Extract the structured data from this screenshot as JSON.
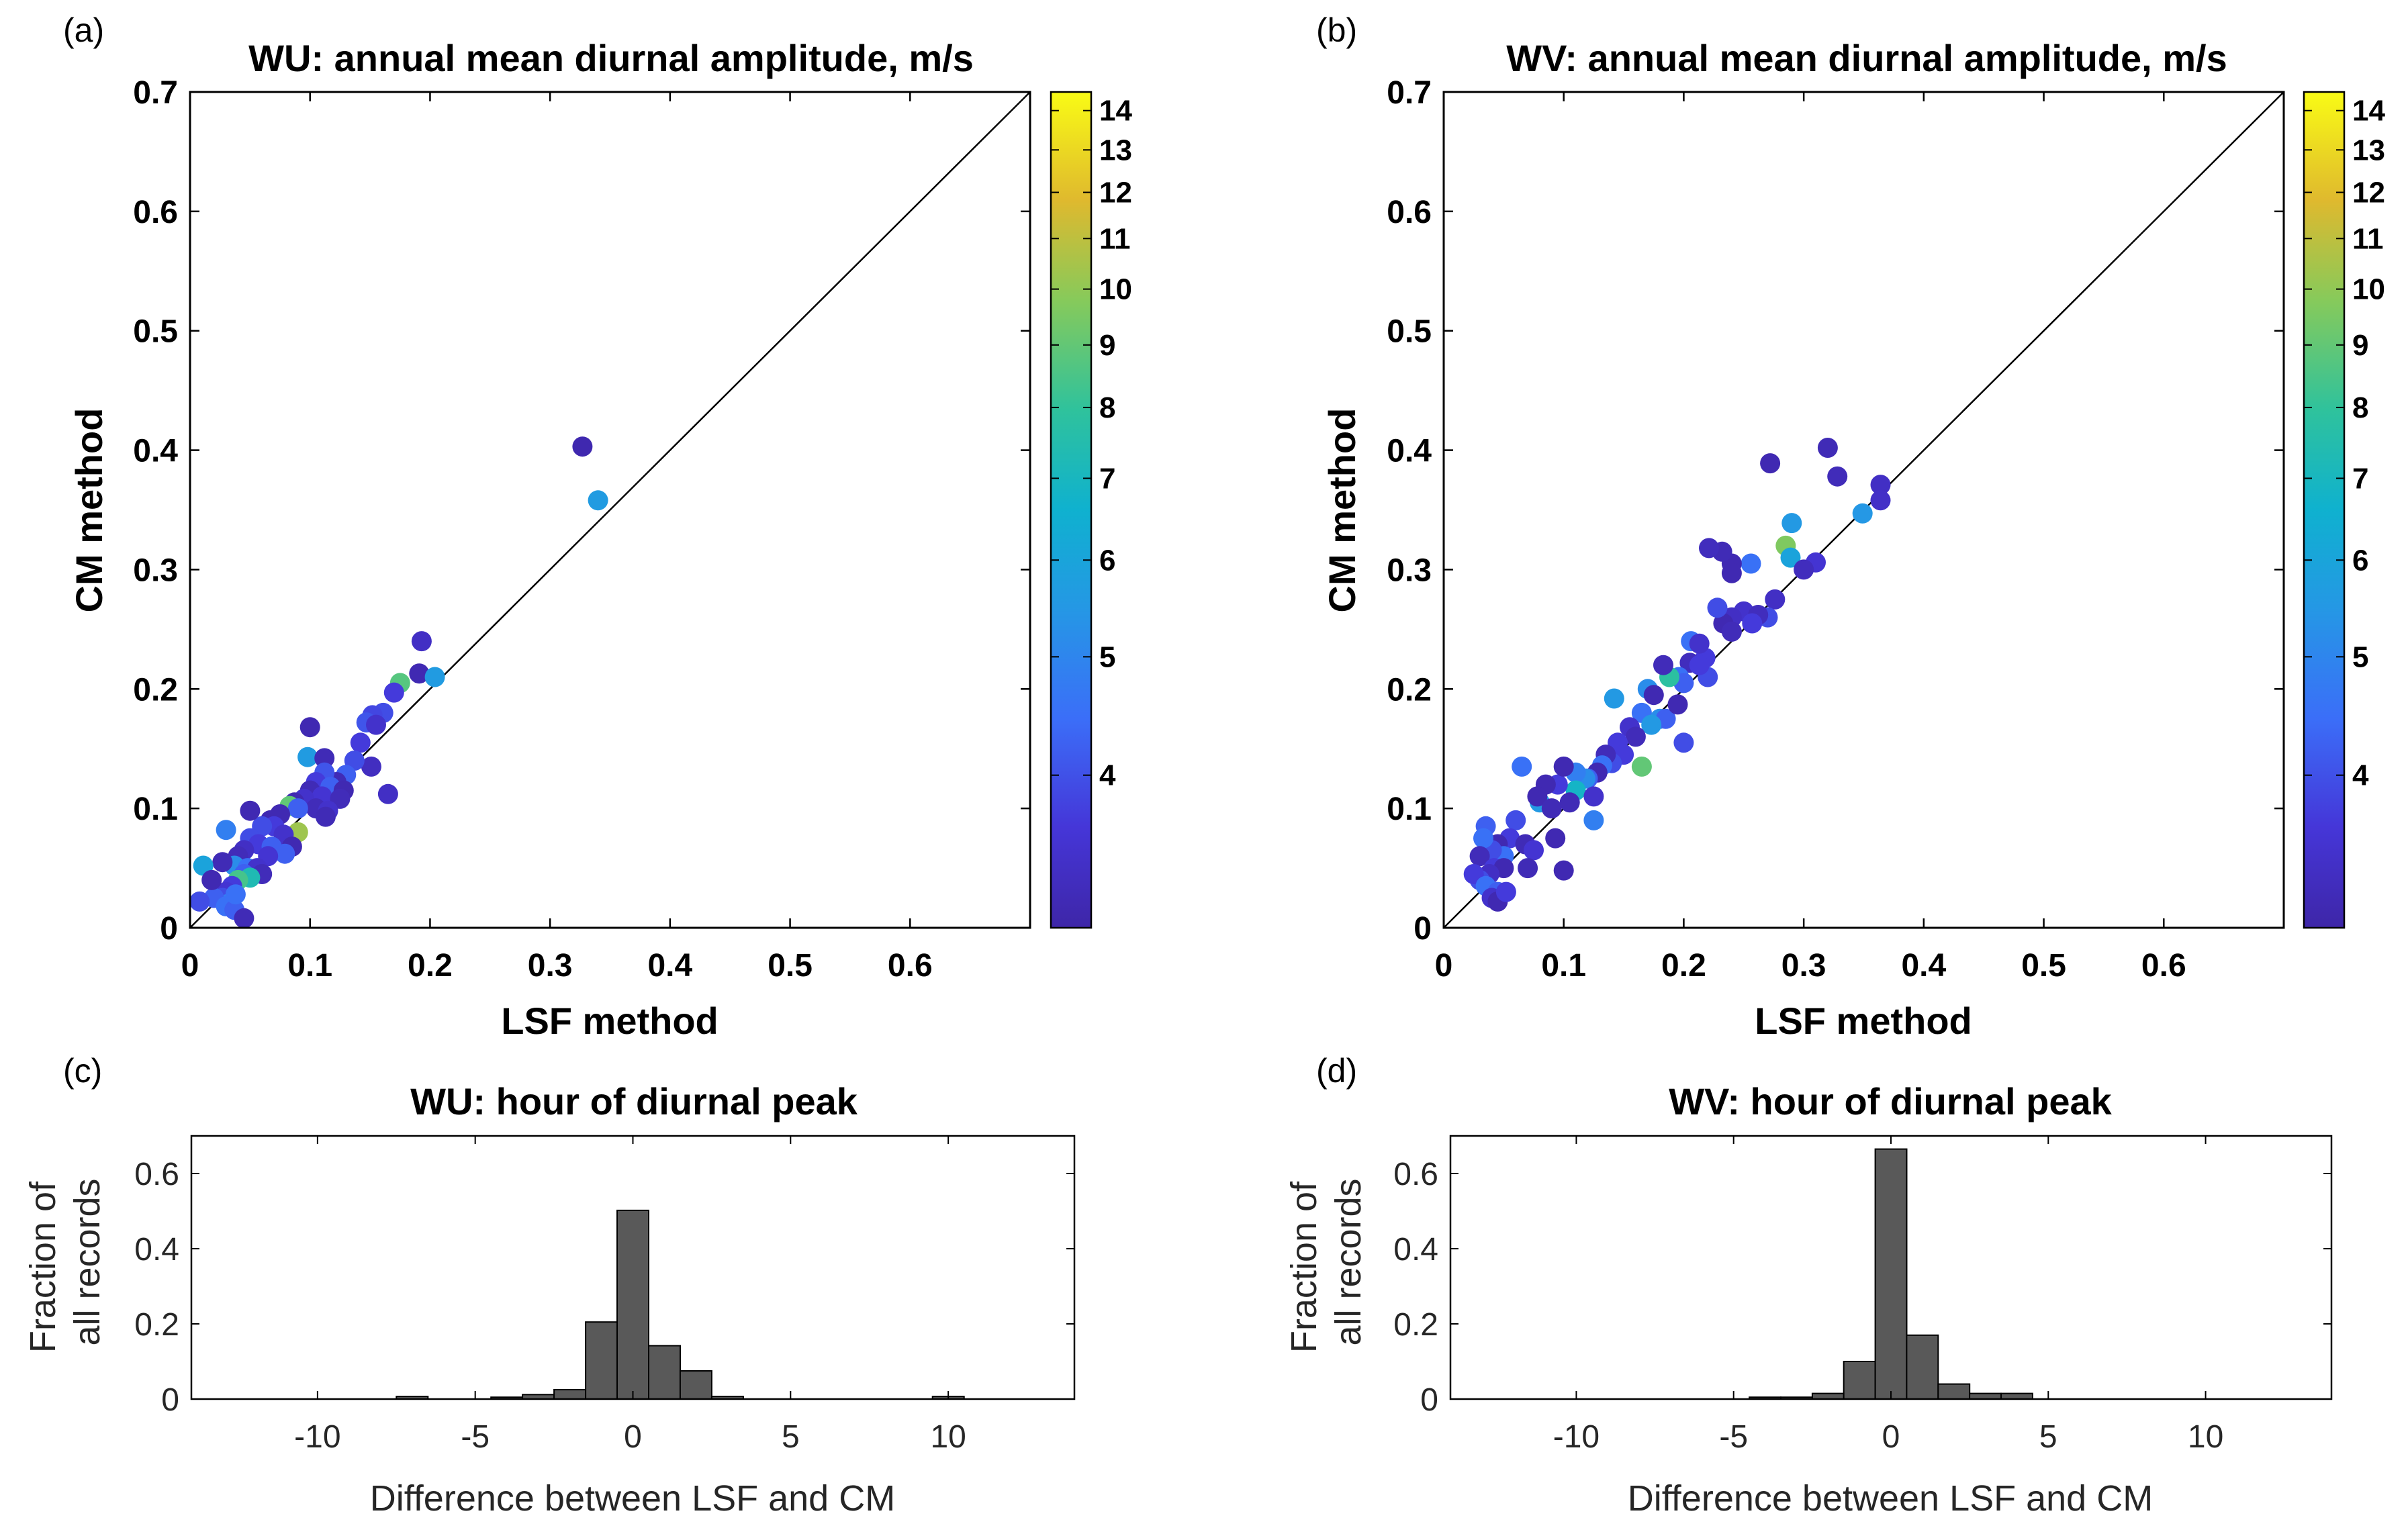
{
  "chart_data": [
    {
      "id": "a",
      "type": "scatter",
      "panel_label": "(a)",
      "title": "WU: annual mean diurnal amplitude, m/s",
      "xlabel": "LSF method",
      "ylabel": "CM method",
      "xlim": [
        0,
        0.7
      ],
      "ylim": [
        0,
        0.7
      ],
      "xticks": [
        "0",
        "0.1",
        "0.2",
        "0.3",
        "0.4",
        "0.5",
        "0.6"
      ],
      "yticks": [
        "0",
        "0.1",
        "0.2",
        "0.3",
        "0.4",
        "0.5",
        "0.6",
        "0.7"
      ],
      "reference_line": "y = x",
      "colorbar": {
        "range": [
          3,
          14.5
        ],
        "ticks": [
          "4",
          "5",
          "6",
          "7",
          "8",
          "9",
          "10",
          "11",
          "12",
          "13",
          "14"
        ],
        "colormap": "parula"
      },
      "points": [
        [
          0.327,
          0.403,
          3.2
        ],
        [
          0.34,
          0.358,
          7.6
        ],
        [
          0.193,
          0.24,
          3.8
        ],
        [
          0.191,
          0.213,
          3.3
        ],
        [
          0.204,
          0.21,
          7.6
        ],
        [
          0.175,
          0.205,
          10.8
        ],
        [
          0.17,
          0.197,
          4.5
        ],
        [
          0.161,
          0.18,
          5.0
        ],
        [
          0.152,
          0.178,
          4.8
        ],
        [
          0.147,
          0.172,
          5.2
        ],
        [
          0.155,
          0.17,
          4.0
        ],
        [
          0.142,
          0.155,
          4.5
        ],
        [
          0.151,
          0.135,
          3.7
        ],
        [
          0.165,
          0.112,
          3.8
        ],
        [
          0.1,
          0.168,
          3.3
        ],
        [
          0.098,
          0.143,
          7.6
        ],
        [
          0.112,
          0.142,
          3.4
        ],
        [
          0.137,
          0.14,
          5.0
        ],
        [
          0.13,
          0.128,
          5.5
        ],
        [
          0.122,
          0.122,
          3.4
        ],
        [
          0.112,
          0.13,
          5.2
        ],
        [
          0.105,
          0.122,
          4.5
        ],
        [
          0.117,
          0.118,
          5.5
        ],
        [
          0.128,
          0.115,
          3.3
        ],
        [
          0.1,
          0.115,
          3.4
        ],
        [
          0.11,
          0.11,
          4.2
        ],
        [
          0.125,
          0.108,
          3.5
        ],
        [
          0.095,
          0.108,
          4.0
        ],
        [
          0.087,
          0.105,
          3.3
        ],
        [
          0.083,
          0.102,
          11.0
        ],
        [
          0.105,
          0.1,
          3.5
        ],
        [
          0.115,
          0.098,
          4.0
        ],
        [
          0.09,
          0.1,
          5.5
        ],
        [
          0.113,
          0.093,
          3.4
        ],
        [
          0.075,
          0.095,
          3.3
        ],
        [
          0.067,
          0.09,
          3.3
        ],
        [
          0.07,
          0.085,
          4.5
        ],
        [
          0.06,
          0.085,
          5.0
        ],
        [
          0.09,
          0.08,
          12.0
        ],
        [
          0.078,
          0.078,
          4.0
        ],
        [
          0.05,
          0.098,
          3.3
        ],
        [
          0.03,
          0.082,
          6.5
        ],
        [
          0.05,
          0.075,
          5.0
        ],
        [
          0.057,
          0.07,
          4.5
        ],
        [
          0.068,
          0.068,
          5.5
        ],
        [
          0.085,
          0.068,
          3.3
        ],
        [
          0.079,
          0.062,
          5.5
        ],
        [
          0.065,
          0.06,
          4.2
        ],
        [
          0.045,
          0.065,
          3.8
        ],
        [
          0.04,
          0.06,
          3.5
        ],
        [
          0.037,
          0.052,
          7.0
        ],
        [
          0.027,
          0.055,
          3.4
        ],
        [
          0.048,
          0.05,
          6.0
        ],
        [
          0.056,
          0.05,
          4.0
        ],
        [
          0.06,
          0.045,
          3.5
        ],
        [
          0.045,
          0.045,
          5.5
        ],
        [
          0.05,
          0.042,
          9.5
        ],
        [
          0.04,
          0.04,
          10.5
        ],
        [
          0.035,
          0.035,
          4.5
        ],
        [
          0.03,
          0.03,
          4.2
        ],
        [
          0.027,
          0.025,
          5.0
        ],
        [
          0.032,
          0.02,
          6.5
        ],
        [
          0.02,
          0.025,
          5.5
        ],
        [
          0.03,
          0.018,
          6.0
        ],
        [
          0.037,
          0.015,
          5.5
        ],
        [
          0.045,
          0.008,
          3.4
        ],
        [
          0.011,
          0.052,
          8.0
        ],
        [
          0.018,
          0.04,
          3.3
        ],
        [
          0.008,
          0.022,
          5.0
        ],
        [
          0.038,
          0.028,
          6.0
        ]
      ]
    },
    {
      "id": "b",
      "type": "scatter",
      "panel_label": "(b)",
      "title": "WV: annual mean diurnal amplitude, m/s",
      "xlabel": "LSF method",
      "ylabel": "CM method",
      "xlim": [
        0,
        0.7
      ],
      "ylim": [
        0,
        0.7
      ],
      "xticks": [
        "0",
        "0.1",
        "0.2",
        "0.3",
        "0.4",
        "0.5",
        "0.6"
      ],
      "yticks": [
        "0",
        "0.1",
        "0.2",
        "0.3",
        "0.4",
        "0.5",
        "0.6",
        "0.7"
      ],
      "reference_line": "y = x",
      "colorbar": {
        "range": [
          3,
          14.5
        ],
        "ticks": [
          "4",
          "5",
          "6",
          "7",
          "8",
          "9",
          "10",
          "11",
          "12",
          "13",
          "14"
        ],
        "colormap": "parula"
      },
      "points": [
        [
          0.272,
          0.389,
          3.3
        ],
        [
          0.32,
          0.402,
          3.4
        ],
        [
          0.328,
          0.378,
          3.5
        ],
        [
          0.364,
          0.371,
          3.8
        ],
        [
          0.364,
          0.358,
          3.9
        ],
        [
          0.349,
          0.347,
          7.4
        ],
        [
          0.29,
          0.339,
          7.5
        ],
        [
          0.285,
          0.32,
          11.5
        ],
        [
          0.289,
          0.31,
          8.0
        ],
        [
          0.31,
          0.306,
          4.2
        ],
        [
          0.3,
          0.3,
          3.6
        ],
        [
          0.276,
          0.275,
          3.8
        ],
        [
          0.256,
          0.305,
          6.0
        ],
        [
          0.24,
          0.305,
          3.3
        ],
        [
          0.232,
          0.315,
          3.4
        ],
        [
          0.221,
          0.318,
          3.6
        ],
        [
          0.24,
          0.297,
          3.3
        ],
        [
          0.27,
          0.26,
          5.0
        ],
        [
          0.25,
          0.265,
          4.0
        ],
        [
          0.262,
          0.262,
          3.6
        ],
        [
          0.257,
          0.255,
          4.5
        ],
        [
          0.24,
          0.26,
          3.8
        ],
        [
          0.233,
          0.255,
          3.3
        ],
        [
          0.228,
          0.268,
          5.0
        ],
        [
          0.24,
          0.248,
          3.5
        ],
        [
          0.218,
          0.226,
          4.5
        ],
        [
          0.206,
          0.24,
          6.0
        ],
        [
          0.213,
          0.238,
          4.0
        ],
        [
          0.205,
          0.222,
          3.6
        ],
        [
          0.22,
          0.21,
          5.0
        ],
        [
          0.213,
          0.22,
          4.5
        ],
        [
          0.196,
          0.21,
          6.0
        ],
        [
          0.2,
          0.205,
          5.5
        ],
        [
          0.188,
          0.21,
          10.0
        ],
        [
          0.183,
          0.22,
          3.5
        ],
        [
          0.17,
          0.2,
          7.0
        ],
        [
          0.175,
          0.195,
          3.3
        ],
        [
          0.165,
          0.18,
          6.0
        ],
        [
          0.18,
          0.175,
          7.0
        ],
        [
          0.185,
          0.175,
          5.5
        ],
        [
          0.195,
          0.187,
          3.3
        ],
        [
          0.173,
          0.17,
          7.5
        ],
        [
          0.155,
          0.168,
          4.0
        ],
        [
          0.16,
          0.16,
          3.5
        ],
        [
          0.145,
          0.155,
          4.5
        ],
        [
          0.142,
          0.192,
          7.5
        ],
        [
          0.15,
          0.145,
          4.5
        ],
        [
          0.14,
          0.138,
          5.0
        ],
        [
          0.135,
          0.145,
          3.5
        ],
        [
          0.132,
          0.136,
          6.0
        ],
        [
          0.165,
          0.135,
          11.0
        ],
        [
          0.2,
          0.155,
          5.0
        ],
        [
          0.128,
          0.13,
          3.3
        ],
        [
          0.12,
          0.125,
          5.5
        ],
        [
          0.118,
          0.125,
          7.0
        ],
        [
          0.11,
          0.13,
          6.5
        ],
        [
          0.11,
          0.115,
          9.0
        ],
        [
          0.125,
          0.11,
          4.0
        ],
        [
          0.125,
          0.09,
          6.5
        ],
        [
          0.105,
          0.105,
          3.4
        ],
        [
          0.095,
          0.12,
          4.5
        ],
        [
          0.1,
          0.135,
          3.3
        ],
        [
          0.085,
          0.12,
          3.3
        ],
        [
          0.08,
          0.105,
          7.5
        ],
        [
          0.078,
          0.11,
          3.3
        ],
        [
          0.09,
          0.1,
          3.4
        ],
        [
          0.065,
          0.135,
          6.0
        ],
        [
          0.093,
          0.075,
          3.3
        ],
        [
          0.06,
          0.09,
          5.0
        ],
        [
          0.055,
          0.075,
          4.5
        ],
        [
          0.045,
          0.07,
          3.3
        ],
        [
          0.068,
          0.07,
          3.4
        ],
        [
          0.075,
          0.065,
          4.2
        ],
        [
          0.05,
          0.06,
          6.0
        ],
        [
          0.04,
          0.065,
          5.0
        ],
        [
          0.035,
          0.085,
          5.5
        ],
        [
          0.033,
          0.075,
          6.0
        ],
        [
          0.03,
          0.06,
          3.5
        ],
        [
          0.042,
          0.05,
          4.5
        ],
        [
          0.05,
          0.05,
          3.3
        ],
        [
          0.038,
          0.045,
          3.8
        ],
        [
          0.03,
          0.04,
          5.0
        ],
        [
          0.025,
          0.045,
          4.5
        ],
        [
          0.035,
          0.035,
          6.0
        ],
        [
          0.045,
          0.03,
          5.5
        ],
        [
          0.04,
          0.025,
          4.0
        ],
        [
          0.045,
          0.022,
          3.3
        ],
        [
          0.052,
          0.03,
          4.5
        ],
        [
          0.1,
          0.048,
          3.3
        ],
        [
          0.07,
          0.05,
          3.4
        ]
      ]
    },
    {
      "id": "c",
      "type": "bar",
      "panel_label": "(c)",
      "title": "WU: hour of diurnal peak",
      "xlabel": "Difference between LSF and CM",
      "ylabel": "Fraction of\nall records",
      "xlim": [
        -14,
        14
      ],
      "ylim": [
        0,
        0.7
      ],
      "xticks": [
        "-10",
        "-5",
        "0",
        "5",
        "10"
      ],
      "yticks": [
        "0",
        "0.2",
        "0.4",
        "0.6"
      ],
      "bin_width": 1,
      "bin_centers": [
        -7,
        -4,
        -3,
        -2,
        -1,
        0,
        1,
        2,
        3,
        10
      ],
      "values": [
        0.007,
        0.005,
        0.012,
        0.025,
        0.205,
        0.502,
        0.142,
        0.075,
        0.007,
        0.007
      ]
    },
    {
      "id": "d",
      "type": "bar",
      "panel_label": "(d)",
      "title": "WV: hour of diurnal peak",
      "xlabel": "Difference between LSF and CM",
      "ylabel": "Fraction of\nall records",
      "xlim": [
        -14,
        14
      ],
      "ylim": [
        0,
        0.7
      ],
      "xticks": [
        "-10",
        "-5",
        "0",
        "5",
        "10"
      ],
      "yticks": [
        "0",
        "0.2",
        "0.4",
        "0.6"
      ],
      "bin_width": 1,
      "bin_centers": [
        -4,
        -3,
        -2,
        -1,
        0,
        1,
        2,
        3,
        4
      ],
      "values": [
        0.005,
        0.005,
        0.015,
        0.1,
        0.665,
        0.17,
        0.04,
        0.015,
        0.015
      ]
    }
  ]
}
